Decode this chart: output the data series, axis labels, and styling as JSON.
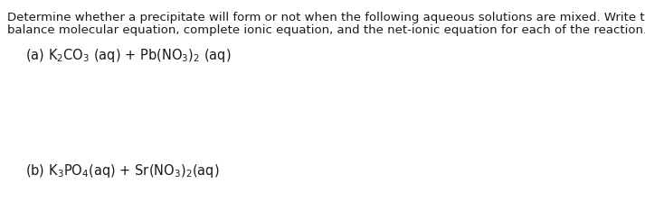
{
  "background_color": "#ffffff",
  "text_color": "#1a1a1a",
  "body_color": "#1a1a1a",
  "font_size_body": 9.5,
  "font_size_chem": 10.5,
  "line1": "Determine whether a precipitate will form or not when the following aqueous solutions are mixed. Write the",
  "line2": "balance molecular equation, complete ionic equation, and the net-ionic equation for each of the reaction.",
  "part_a_chem": "(a) K$_2$CO$_3$ (aq) + Pb(NO$_3$)$_2$ (aq)",
  "part_b_chem": "(b) K$_3$PO$_4$(aq) + Sr(NO$_3$)$_2$(aq)"
}
